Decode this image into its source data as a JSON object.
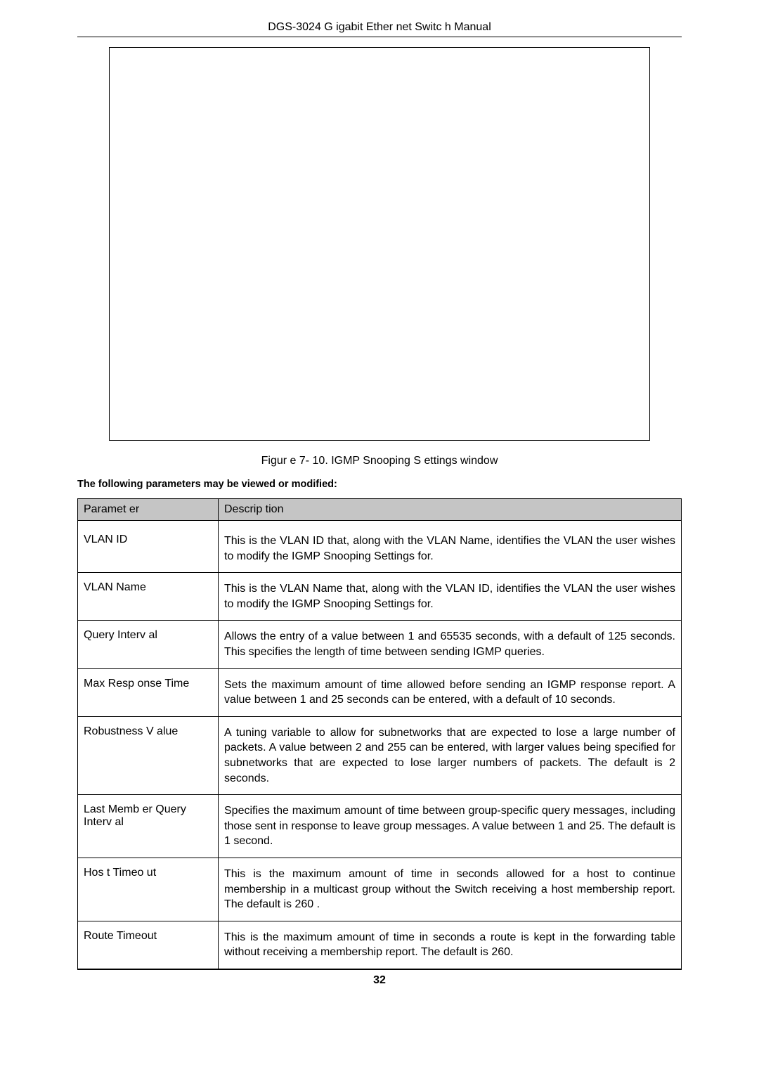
{
  "header": {
    "title": "DGS-3024 G igabit Ether net Switc h Manual"
  },
  "figure": {
    "caption": "Figur e 7- 10.  IGMP Snooping S ettings  window"
  },
  "intro": "The following parameters may be viewed or modified:",
  "table": {
    "headers": {
      "param": "Paramet er",
      "desc": "Descrip tion"
    },
    "rows": [
      {
        "param": "VLAN ID",
        "desc": "This is the VLAN ID that, along with the VLAN Name, identifies the VLAN the user wishes to modify the IGMP Snooping Settings for."
      },
      {
        "param": "VLAN Name",
        "desc": "This is the VLAN Name that, along with the VLAN ID, identifies the VLAN the user wishes to modify the IGMP Snooping Settings for."
      },
      {
        "param": "Query Interv al",
        "desc": "Allows the entry of a value between 1 and 65535  seconds, with a default of 125 seconds. This specifies the length of time between sending IGMP queries."
      },
      {
        "param": "Max Resp onse Time",
        "desc": "Sets the maximum amount of time allowed before sending an IGMP response report. A value between 1 and 25 seconds can be entered, with a default of 10 seconds."
      },
      {
        "param": "Robustness V  alue",
        "desc": "A tuning variable to allow for subnetworks that are expected to lose a large number of packets. A value between 2 and 255 can be entered, with larger values being specified for subnetworks that are expected to lose larger numbers of packets. The default is 2 seconds."
      },
      {
        "param": "Last Memb er Query Interv al",
        "desc": "Specifies the maximum amount of time between group-specific query messages, including those sent in response to leave group messages. A value between 1 and 25. The default is 1 second."
      },
      {
        "param": "Hos t Timeo ut",
        "desc": "This is the maximum amount of time in seconds allowed for a host to continue membership in a multicast group without the Switch receiving a host membership report. The default is 260 ."
      },
      {
        "param": "Route  Timeout",
        "desc": "This is the maximum amount of time in seconds a route is kept in the forwarding table without receiving a membership report. The default is 260."
      }
    ]
  },
  "pageNumber": "32"
}
